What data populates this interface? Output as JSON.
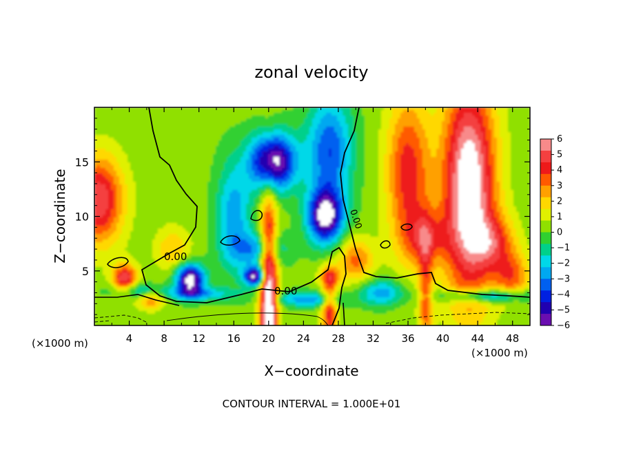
{
  "chart_data": {
    "type": "heatmap",
    "title": "zonal velocity",
    "xlabel": "X−coordinate",
    "ylabel": "Z−coordinate",
    "x_unit_label": "(×1000 m)",
    "z_unit_label": "(×1000 m)",
    "footer": "CONTOUR INTERVAL = 1.000E+01",
    "contour_label": "0.00",
    "xlim": [
      0,
      50
    ],
    "ylim": [
      0,
      20
    ],
    "x_ticks": [
      4,
      8,
      12,
      16,
      20,
      24,
      28,
      32,
      36,
      40,
      44,
      48
    ],
    "y_ticks": [
      5,
      10,
      15
    ],
    "colorbar": {
      "min": -6,
      "max": 6,
      "ticks": [
        6,
        5,
        4,
        3,
        2,
        1,
        0,
        -1,
        -2,
        -3,
        -4,
        -5,
        -6
      ],
      "colors": [
        "#f88a8a",
        "#f44040",
        "#ee1a1a",
        "#ff5a00",
        "#ffa000",
        "#ffd800",
        "#e0f000",
        "#90e000",
        "#30d030",
        "#00d08a",
        "#00d8e8",
        "#00a8f0",
        "#0060f0",
        "#0020e0",
        "#2000b0",
        "#6a0eb0"
      ]
    },
    "field_features": [
      {
        "desc": "strong westerly core (>6)",
        "x": 43,
        "z": 12.5,
        "value": 7
      },
      {
        "desc": "strong easterly core (<-6)",
        "x": 20.5,
        "z": 15,
        "value": -7
      },
      {
        "desc": "easterly cell",
        "x": 26,
        "z": 10,
        "value": -7
      },
      {
        "desc": "easterly eddy",
        "x": 11,
        "z": 4.2,
        "value": -7
      },
      {
        "desc": "easterly eddy",
        "x": 18.5,
        "z": 4.5,
        "value": -7
      },
      {
        "desc": "near-surface westerly jet",
        "x": 20,
        "z": 1.2,
        "value": 7
      },
      {
        "desc": "left-edge westerly",
        "x": 0.5,
        "z": 11,
        "value": 5
      }
    ]
  }
}
